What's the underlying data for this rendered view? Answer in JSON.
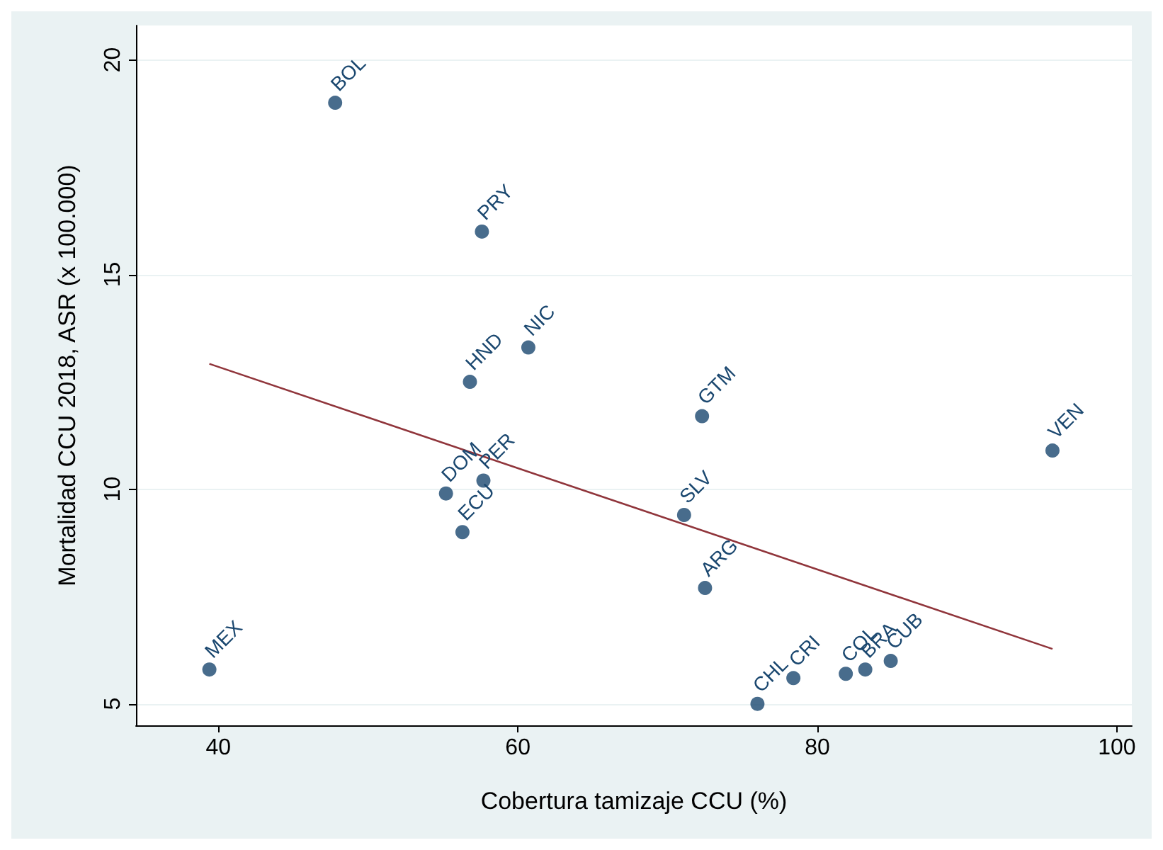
{
  "chart_data": {
    "type": "scatter",
    "xlabel": "Cobertura tamizaje CCU (%)",
    "ylabel": "Mortalidad CCU 2018, ASR (x 100.000)",
    "xlim": [
      34.5,
      101
    ],
    "xticks": [
      40,
      60,
      80,
      100
    ],
    "ylim": [
      4.5,
      20.8
    ],
    "yticks": [
      5,
      10,
      15,
      20
    ],
    "grid": "y",
    "series": [
      {
        "color": "#1a476f",
        "marker": "circle",
        "x": [
          47.8,
          57.6,
          60.7,
          56.8,
          72.3,
          95.7,
          55.2,
          57.7,
          56.3,
          71.1,
          72.5,
          39.4,
          76.0,
          78.4,
          81.9,
          83.2,
          84.9
        ],
        "values": [
          19.0,
          16.0,
          13.3,
          12.5,
          11.7,
          10.9,
          9.9,
          10.2,
          9.0,
          9.4,
          7.7,
          5.8,
          5.0,
          5.6,
          5.7,
          5.8,
          6.0
        ]
      },
      {
        "type": "line",
        "color": "#90353b",
        "x": [
          39.4,
          95.7
        ],
        "values": [
          12.92,
          6.28
        ]
      }
    ],
    "annotations": [
      {
        "text": "BOL",
        "x": 47.8,
        "y": 19.0
      },
      {
        "text": "PRY",
        "x": 57.6,
        "y": 16.0
      },
      {
        "text": "NIC",
        "x": 60.7,
        "y": 13.3
      },
      {
        "text": "HND",
        "x": 56.8,
        "y": 12.5
      },
      {
        "text": "GTM",
        "x": 72.3,
        "y": 11.7
      },
      {
        "text": "VEN",
        "x": 95.7,
        "y": 10.9
      },
      {
        "text": "DOM",
        "x": 55.2,
        "y": 9.9
      },
      {
        "text": "PER",
        "x": 57.7,
        "y": 10.2
      },
      {
        "text": "ECU",
        "x": 56.3,
        "y": 9.0
      },
      {
        "text": "SLV",
        "x": 71.1,
        "y": 9.4
      },
      {
        "text": "ARG",
        "x": 72.5,
        "y": 7.7
      },
      {
        "text": "MEX",
        "x": 39.4,
        "y": 5.8
      },
      {
        "text": "CHL",
        "x": 76.0,
        "y": 5.0
      },
      {
        "text": "CRI",
        "x": 78.4,
        "y": 5.6
      },
      {
        "text": "COL",
        "x": 81.9,
        "y": 5.7
      },
      {
        "text": "BRA",
        "x": 83.2,
        "y": 5.8
      },
      {
        "text": "CUB",
        "x": 84.9,
        "y": 6.0
      }
    ]
  }
}
